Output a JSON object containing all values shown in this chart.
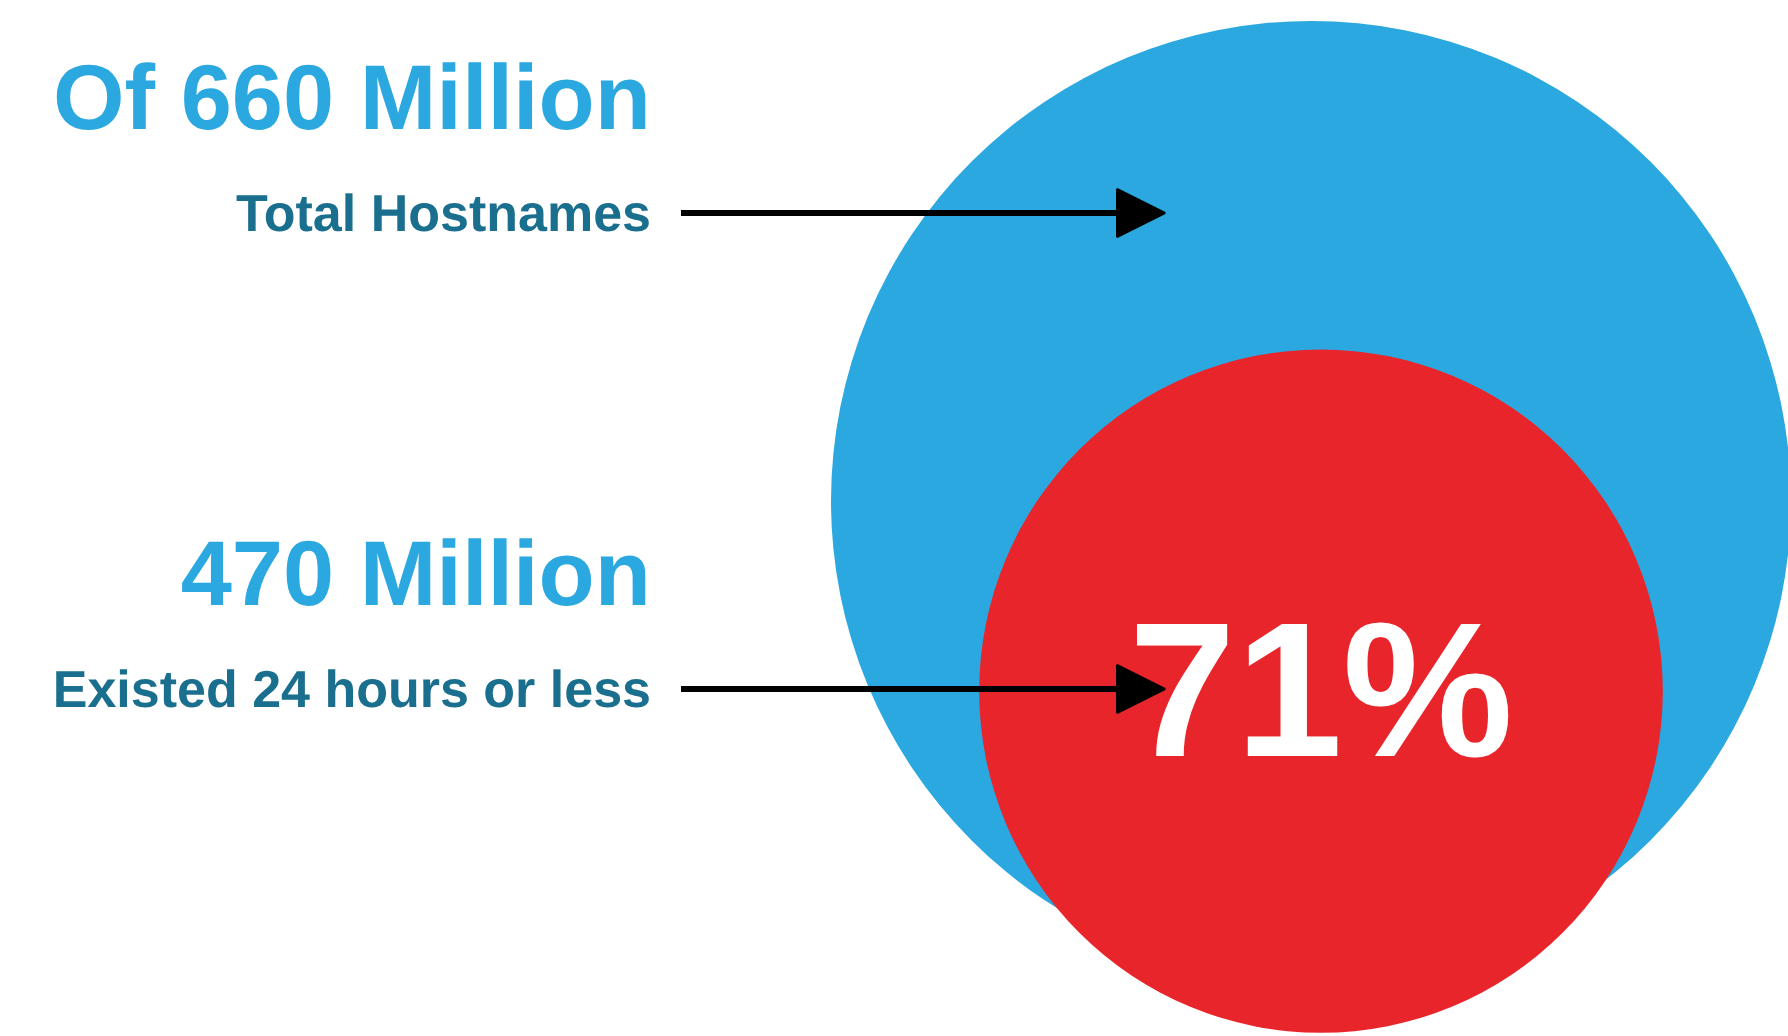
{
  "chart_data": {
    "type": "other",
    "categories": [
      "Total Hostnames",
      "Existed 24 hours or less"
    ],
    "values": [
      660,
      470
    ],
    "value_labels": [
      "Of 660 Million",
      "470 Million"
    ],
    "colors": [
      "#2ca8e0",
      "#e8252a"
    ],
    "annotations": [
      "71%"
    ]
  }
}
